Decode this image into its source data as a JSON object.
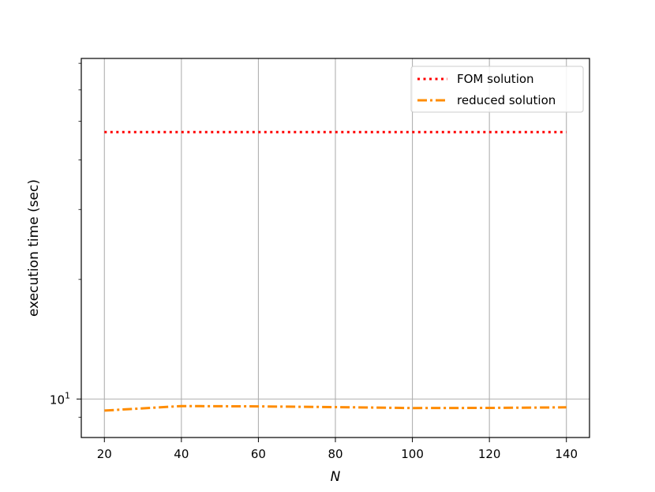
{
  "chart_data": {
    "type": "line",
    "xlabel": "N",
    "ylabel": "execution time (sec)",
    "xlim": [
      14,
      146
    ],
    "ylim": [
      8.0,
      72.0
    ],
    "yscale": "log",
    "x_ticks": [
      20,
      40,
      60,
      80,
      100,
      120,
      140
    ],
    "x_tick_labels": [
      "20",
      "40",
      "60",
      "80",
      "100",
      "120",
      "140"
    ],
    "y_major_ticks": [
      10
    ],
    "y_major_tick_labels": [
      "10",
      "1"
    ],
    "y_minor_ticks": [
      9,
      20,
      30,
      40,
      50,
      60,
      70
    ],
    "grid": true,
    "legend_position": "top-right",
    "series": [
      {
        "name": "FOM solution",
        "color": "#ff0000",
        "line_style": "dotted",
        "x": [
          20,
          40,
          60,
          80,
          100,
          120,
          140
        ],
        "values": [
          47.0,
          47.0,
          47.0,
          47.0,
          47.0,
          47.0,
          47.0
        ]
      },
      {
        "name": "reduced solution",
        "color": "#ff8c00",
        "line_style": "dashdot",
        "x": [
          20,
          40,
          60,
          80,
          100,
          120,
          140
        ],
        "values": [
          9.35,
          9.6,
          9.58,
          9.54,
          9.49,
          9.5,
          9.53
        ]
      }
    ]
  }
}
